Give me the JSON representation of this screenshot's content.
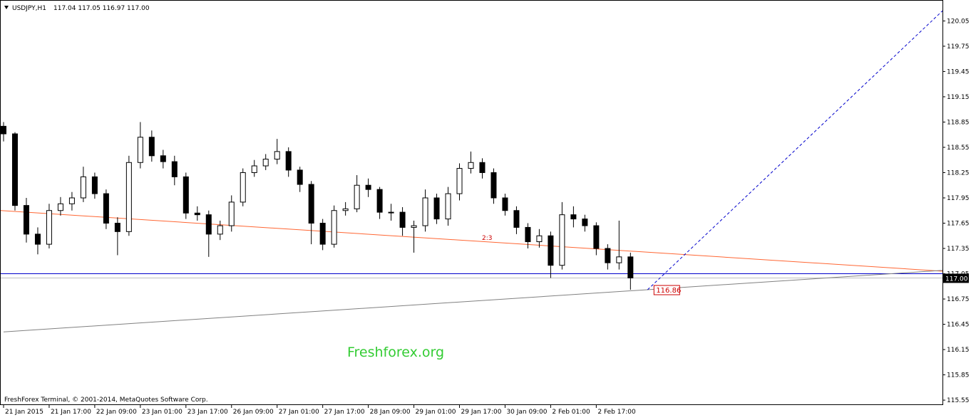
{
  "chart_data": {
    "type": "candlestick",
    "symbol": "USDJPY,H1",
    "quote": "117.04 117.05 116.97 117.00",
    "watermark": "Freshforex.org",
    "copyright": "FreshForex Terminal, © 2001-2014, MetaQuotes Software Corp.",
    "x": [
      0,
      4,
      8,
      12,
      16,
      20,
      24,
      28,
      32,
      36,
      40,
      44,
      48,
      52,
      56,
      60,
      64,
      68,
      72,
      76,
      80,
      84,
      88,
      92,
      96,
      100,
      104,
      108,
      112,
      116,
      120,
      124,
      128,
      132,
      136,
      140,
      144,
      148,
      152,
      156,
      160,
      164,
      168,
      172,
      176,
      180,
      184,
      188,
      192,
      196,
      200,
      204,
      208,
      212,
      216,
      220
    ],
    "open": [
      118.8,
      118.71,
      117.86,
      117.52,
      117.4,
      117.8,
      117.88,
      117.95,
      118.2,
      118.0,
      117.65,
      117.55,
      118.37,
      118.67,
      118.45,
      118.38,
      118.2,
      117.77,
      117.75,
      117.52,
      117.62,
      117.9,
      118.25,
      118.33,
      118.41,
      118.5,
      118.28,
      118.11,
      117.65,
      117.4,
      117.8,
      117.82,
      118.1,
      118.05,
      117.78,
      117.78,
      117.6,
      117.62,
      117.95,
      117.7,
      118.0,
      118.3,
      118.37,
      118.25,
      117.95,
      117.8,
      117.6,
      117.43,
      117.5,
      117.15,
      117.75,
      117.7,
      117.62,
      117.35,
      117.18,
      117.25
    ],
    "high": [
      118.85,
      118.73,
      117.95,
      117.6,
      117.88,
      117.96,
      118.02,
      118.32,
      118.25,
      118.05,
      117.72,
      118.45,
      118.85,
      118.75,
      118.52,
      118.45,
      118.25,
      117.85,
      117.8,
      117.68,
      117.98,
      118.3,
      118.4,
      118.47,
      118.65,
      118.55,
      118.32,
      118.15,
      117.7,
      117.86,
      117.9,
      118.22,
      118.18,
      118.08,
      117.88,
      117.84,
      117.68,
      118.05,
      118.0,
      118.08,
      118.36,
      118.5,
      118.42,
      118.3,
      118.0,
      117.85,
      117.65,
      117.58,
      117.55,
      117.9,
      117.85,
      117.75,
      117.66,
      117.4,
      117.68,
      117.3
    ],
    "low": [
      118.62,
      117.8,
      117.42,
      117.28,
      117.35,
      117.74,
      117.8,
      117.9,
      117.94,
      117.58,
      117.27,
      117.5,
      118.3,
      118.38,
      118.3,
      118.1,
      117.7,
      117.68,
      117.25,
      117.45,
      117.55,
      117.85,
      118.2,
      118.28,
      118.35,
      118.2,
      118.02,
      117.4,
      117.33,
      117.36,
      117.74,
      117.78,
      117.96,
      117.7,
      117.68,
      117.5,
      117.3,
      117.55,
      117.64,
      117.62,
      117.92,
      118.24,
      118.18,
      117.88,
      117.74,
      117.52,
      117.35,
      117.36,
      117.0,
      117.1,
      117.6,
      117.55,
      117.27,
      117.1,
      117.1,
      116.86
    ],
    "close": [
      118.71,
      117.86,
      117.52,
      117.4,
      117.8,
      117.88,
      117.95,
      118.2,
      118.0,
      117.65,
      117.55,
      118.37,
      118.67,
      118.45,
      118.38,
      118.2,
      117.77,
      117.75,
      117.52,
      117.62,
      117.9,
      118.25,
      118.33,
      118.41,
      118.5,
      118.28,
      118.11,
      117.65,
      117.4,
      117.8,
      117.82,
      118.1,
      118.05,
      117.78,
      117.78,
      117.6,
      117.62,
      117.95,
      117.7,
      118.0,
      118.3,
      118.37,
      118.25,
      117.95,
      117.8,
      117.6,
      117.43,
      117.5,
      117.15,
      117.75,
      117.7,
      117.62,
      117.35,
      117.18,
      117.25,
      117.0
    ],
    "up_color": "#ffffff",
    "down_color": "#000000",
    "wick_color": "#000000",
    "xlim": [
      -1,
      329.5
    ],
    "ylim": [
      115.5,
      120.29
    ],
    "xticks": [
      {
        "value": 0,
        "label": "21 Jan 2015"
      },
      {
        "value": 16,
        "label": "21 Jan 17:00"
      },
      {
        "value": 32,
        "label": "22 Jan 09:00"
      },
      {
        "value": 48,
        "label": "23 Jan 01:00"
      },
      {
        "value": 64,
        "label": "23 Jan 17:00"
      },
      {
        "value": 80,
        "label": "26 Jan 09:00"
      },
      {
        "value": 96,
        "label": "27 Jan 01:00"
      },
      {
        "value": 112,
        "label": "27 Jan 17:00"
      },
      {
        "value": 128,
        "label": "28 Jan 09:00"
      },
      {
        "value": 144,
        "label": "29 Jan 01:00"
      },
      {
        "value": 160,
        "label": "29 Jan 17:00"
      },
      {
        "value": 176,
        "label": "30 Jan 09:00"
      },
      {
        "value": 192,
        "label": "2 Feb 01:00"
      },
      {
        "value": 208,
        "label": "2 Feb 17:00"
      }
    ],
    "yticks": [
      115.55,
      115.85,
      116.15,
      116.45,
      116.75,
      117.05,
      117.35,
      117.65,
      117.95,
      118.25,
      118.55,
      118.85,
      119.15,
      119.45,
      119.75,
      120.05
    ],
    "lines": [
      {
        "label": "2:3",
        "color": "#ff6633",
        "dash": false,
        "x": [
          -1,
          329.5
        ],
        "y": [
          117.8,
          117.08
        ]
      },
      {
        "color": "#808080",
        "dash": false,
        "x": [
          0,
          329.5
        ],
        "y": [
          116.36,
          117.09
        ]
      },
      {
        "color": "#0000cc",
        "dash": true,
        "x": [
          226,
          329.5
        ],
        "y": [
          116.86,
          120.17
        ]
      }
    ],
    "hline": {
      "value": 117.05,
      "color": "#0000cc"
    },
    "price_tag": {
      "value": 117.0,
      "label": "117.00",
      "color": "#999999"
    }
  }
}
